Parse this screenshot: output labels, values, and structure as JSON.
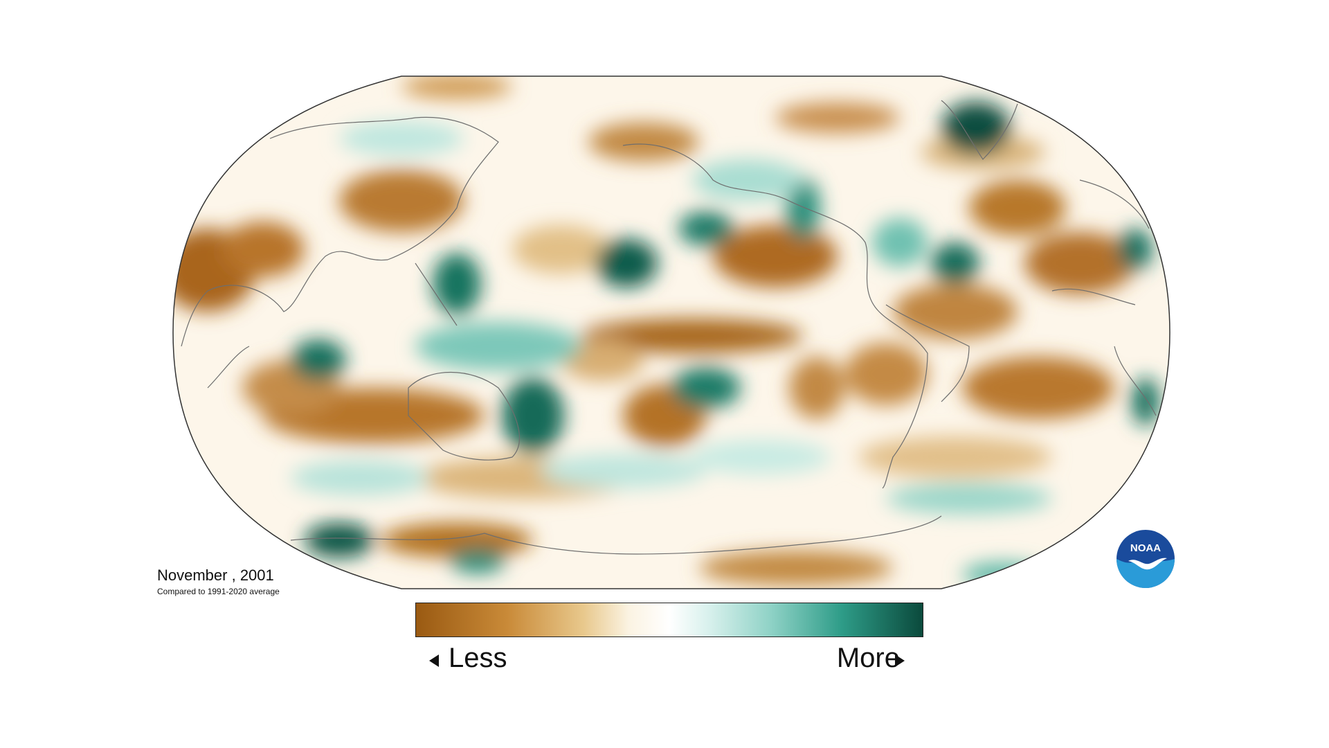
{
  "map": {
    "date_label": "November , 2001",
    "comparison_label": "Compared to 1991-2020 average"
  },
  "legend": {
    "low_label": "Less",
    "high_label": "More",
    "colors": [
      "#9a5a12",
      "#c98a38",
      "#e8c88c",
      "#fbf3e2",
      "#ffffff",
      "#d7f0ec",
      "#8fd2c6",
      "#2e9c88",
      "#0b4a3c"
    ]
  },
  "logo": {
    "text": "NOAA",
    "primary_color": "#1a4b9c",
    "accent_color": "#2a9bd8"
  }
}
